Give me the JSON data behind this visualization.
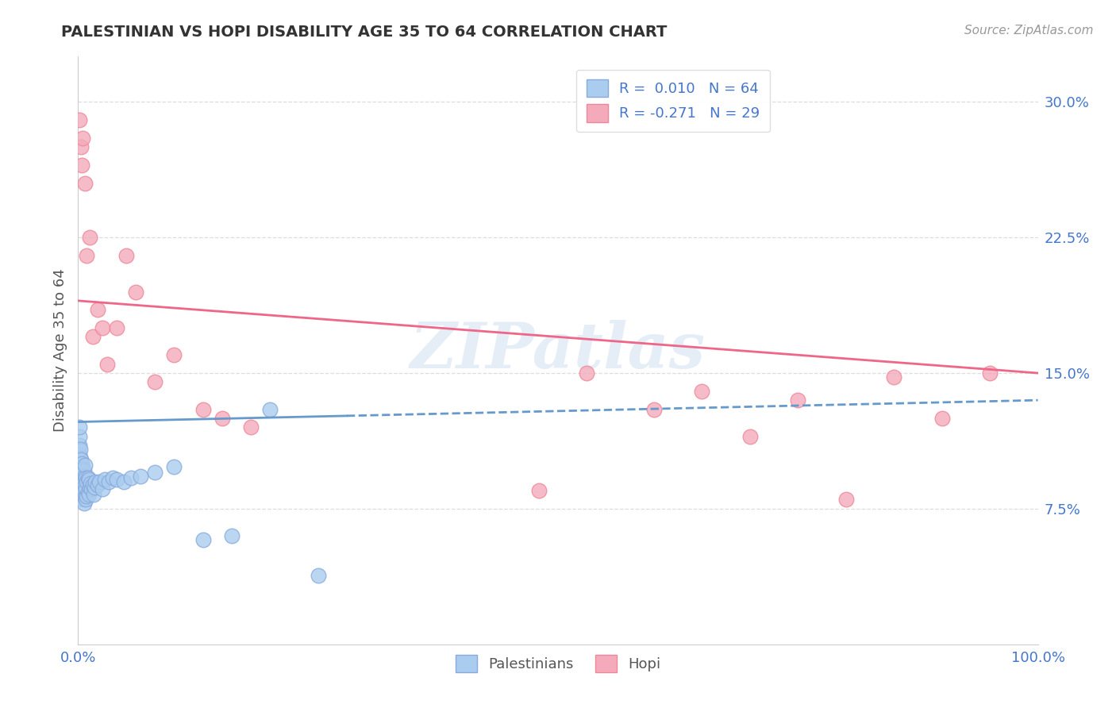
{
  "title": "PALESTINIAN VS HOPI DISABILITY AGE 35 TO 64 CORRELATION CHART",
  "source": "Source: ZipAtlas.com",
  "ylabel": "Disability Age 35 to 64",
  "xlim": [
    0,
    1.0
  ],
  "ylim": [
    0.0,
    0.325
  ],
  "ytick_positions": [
    0.075,
    0.15,
    0.225,
    0.3
  ],
  "ytick_labels": [
    "7.5%",
    "15.0%",
    "22.5%",
    "30.0%"
  ],
  "palestinian_color": "#aaccee",
  "hopi_color": "#f4aabb",
  "palestinian_edge": "#88aadd",
  "hopi_edge": "#ee8899",
  "trend_blue": "#6699cc",
  "trend_pink": "#ee6688",
  "R_palestinian": 0.01,
  "N_palestinian": 64,
  "R_hopi": -0.271,
  "N_hopi": 29,
  "palestinian_x": [
    0.001,
    0.001,
    0.001,
    0.001,
    0.001,
    0.001,
    0.001,
    0.002,
    0.002,
    0.002,
    0.002,
    0.002,
    0.003,
    0.003,
    0.003,
    0.003,
    0.004,
    0.004,
    0.004,
    0.004,
    0.005,
    0.005,
    0.005,
    0.005,
    0.006,
    0.006,
    0.006,
    0.006,
    0.007,
    0.007,
    0.007,
    0.007,
    0.008,
    0.008,
    0.008,
    0.009,
    0.009,
    0.01,
    0.01,
    0.011,
    0.011,
    0.012,
    0.013,
    0.014,
    0.015,
    0.016,
    0.017,
    0.018,
    0.02,
    0.022,
    0.025,
    0.028,
    0.032,
    0.036,
    0.04,
    0.048,
    0.055,
    0.065,
    0.08,
    0.1,
    0.13,
    0.16,
    0.2,
    0.25
  ],
  "palestinian_y": [
    0.09,
    0.095,
    0.1,
    0.105,
    0.11,
    0.115,
    0.12,
    0.088,
    0.093,
    0.098,
    0.103,
    0.108,
    0.085,
    0.092,
    0.097,
    0.102,
    0.082,
    0.088,
    0.094,
    0.1,
    0.08,
    0.086,
    0.091,
    0.097,
    0.078,
    0.085,
    0.09,
    0.096,
    0.082,
    0.088,
    0.093,
    0.099,
    0.08,
    0.086,
    0.092,
    0.082,
    0.09,
    0.084,
    0.092,
    0.083,
    0.091,
    0.087,
    0.089,
    0.086,
    0.088,
    0.083,
    0.087,
    0.09,
    0.088,
    0.09,
    0.086,
    0.091,
    0.09,
    0.092,
    0.091,
    0.09,
    0.092,
    0.093,
    0.095,
    0.098,
    0.058,
    0.06,
    0.13,
    0.038
  ],
  "hopi_x": [
    0.001,
    0.003,
    0.004,
    0.005,
    0.007,
    0.009,
    0.012,
    0.015,
    0.02,
    0.025,
    0.03,
    0.04,
    0.05,
    0.06,
    0.08,
    0.1,
    0.13,
    0.15,
    0.18,
    0.48,
    0.53,
    0.6,
    0.65,
    0.7,
    0.75,
    0.8,
    0.85,
    0.9,
    0.95
  ],
  "hopi_y": [
    0.29,
    0.275,
    0.265,
    0.28,
    0.255,
    0.215,
    0.225,
    0.17,
    0.185,
    0.175,
    0.155,
    0.175,
    0.215,
    0.195,
    0.145,
    0.16,
    0.13,
    0.125,
    0.12,
    0.085,
    0.15,
    0.13,
    0.14,
    0.115,
    0.135,
    0.08,
    0.148,
    0.125,
    0.15
  ],
  "background_color": "#ffffff",
  "grid_color": "#dddddd",
  "watermark": "ZIPatlas",
  "hopi_trend_x0": 0.0,
  "hopi_trend_y0": 0.19,
  "hopi_trend_x1": 1.0,
  "hopi_trend_y1": 0.15,
  "pal_trend_x0": 0.001,
  "pal_trend_y0": 0.123,
  "pal_trend_x1": 1.0,
  "pal_trend_y1": 0.135
}
